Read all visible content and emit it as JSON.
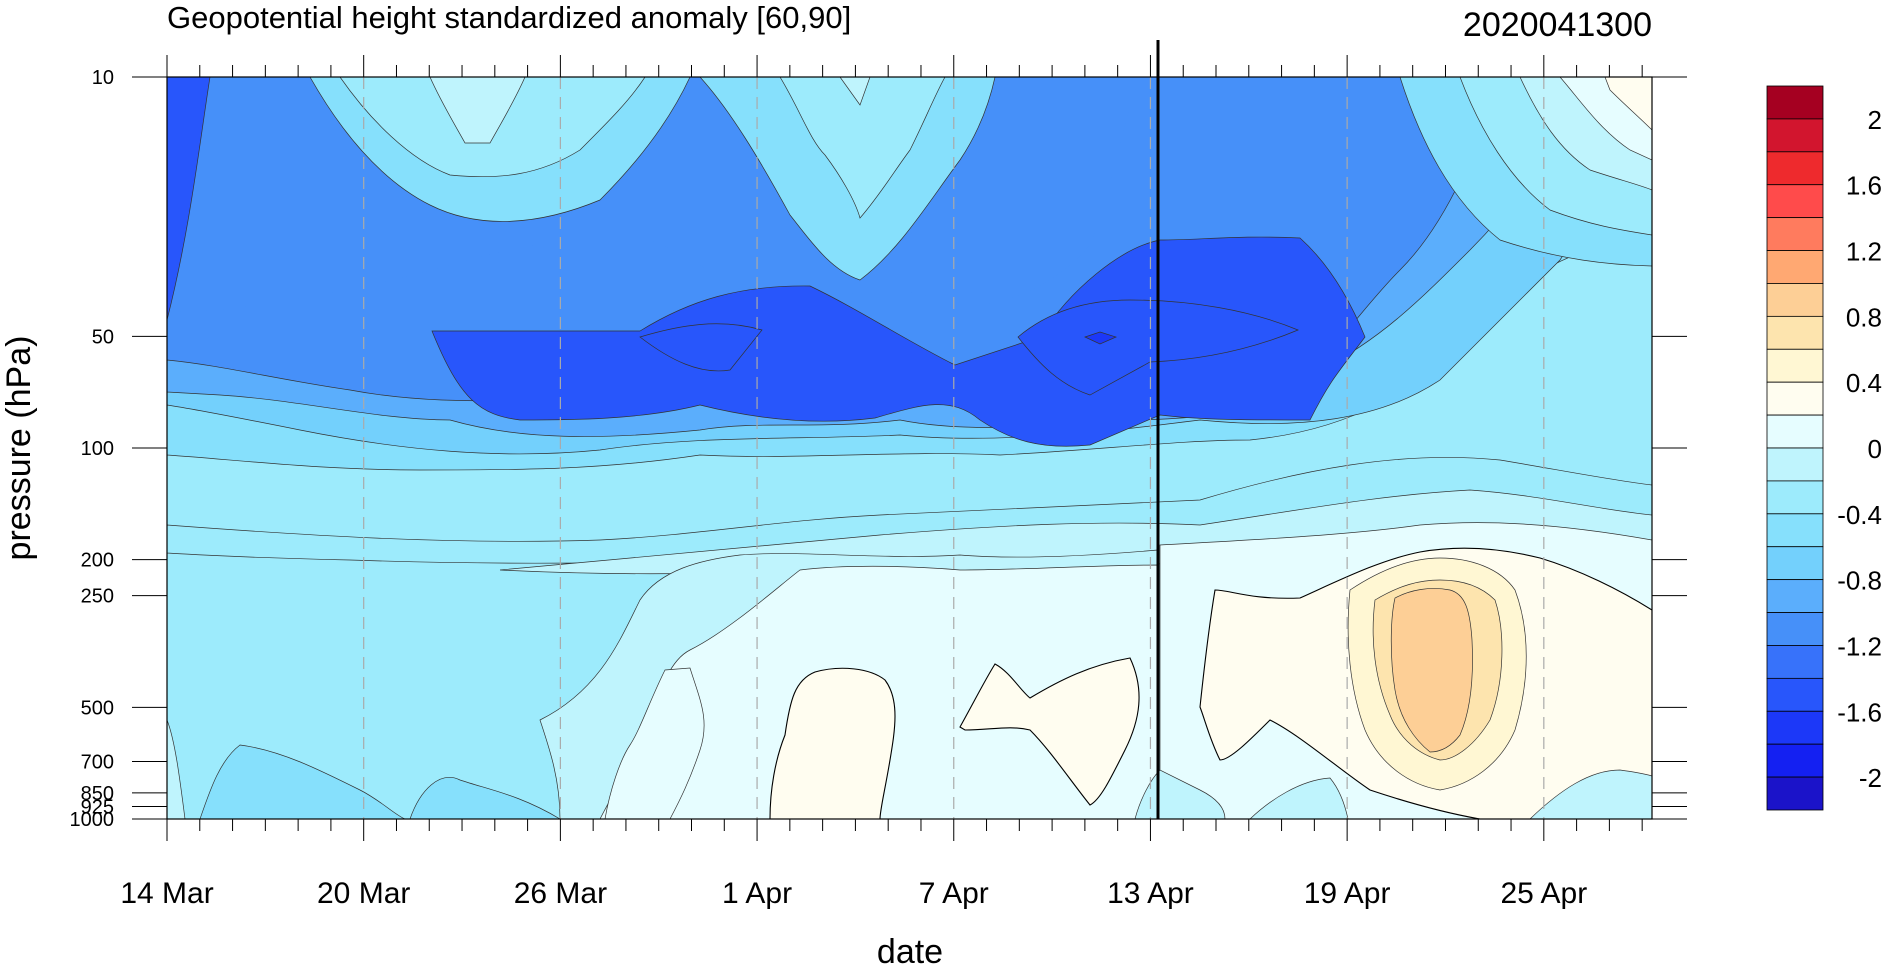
{
  "chart_data": {
    "type": "heatmap",
    "title": "Geopotential height standardized anomaly [60,90]",
    "date_label": "2020041300",
    "xlabel": "date",
    "ylabel": "pressure (hPa)",
    "x_ticks": [
      "14 Mar",
      "20 Mar",
      "26 Mar",
      "1 Apr",
      "7 Apr",
      "13 Apr",
      "19 Apr",
      "25 Apr"
    ],
    "x_range": [
      "14 Mar",
      "28 Apr"
    ],
    "y_scale": "log",
    "y_ticks": [
      10,
      50,
      100,
      200,
      250,
      500,
      700,
      850,
      925,
      1000
    ],
    "y_range": [
      10,
      1000
    ],
    "current_date_line": "13 Apr",
    "colorbar": {
      "labels": [
        "2",
        "1.6",
        "1.2",
        "0.8",
        "0.4",
        "0",
        "-0.4",
        "-0.8",
        "-1.2",
        "-1.6",
        "-2"
      ],
      "colors": [
        "#a50021",
        "#d2152e",
        "#ee2a2d",
        "#ff4b4b",
        "#ff7b5e",
        "#ffa872",
        "#fdcf96",
        "#fde4ae",
        "#fff7d3",
        "#fffdf0",
        "#e6fdff",
        "#bff4fd",
        "#9debfc",
        "#86e0fc",
        "#73d0fc",
        "#5baefc",
        "#4690f9",
        "#3772fa",
        "#2856fb",
        "#1c38f8",
        "#1420f2",
        "#1b13c9"
      ]
    },
    "regions": [
      {
        "name": "anomaly below -1.8 near 50 hPa on 11 Apr",
        "value": -1.9
      },
      {
        "name": "negative stratospheric anomaly 50-100 hPa, 23 Mar - 17 Apr",
        "value": -1.7
      },
      {
        "name": "positive tropospheric anomaly centred near 21 Apr, 250-700 hPa",
        "value": 0.7
      },
      {
        "name": "weak positive anomaly 2-11 Apr, 400-1000 hPa",
        "value": 0.1
      },
      {
        "name": "weak positive anomaly at 10 hPa, 26-28 Apr",
        "value": 0.1
      }
    ]
  }
}
